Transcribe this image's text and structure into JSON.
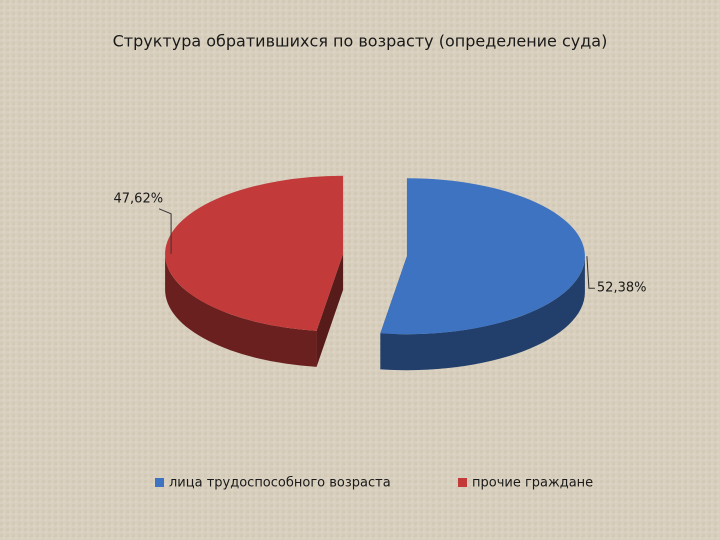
{
  "chart_data": {
    "type": "pie",
    "title": "Структура обратившихся по возрасту (определение суда)",
    "categories": [
      "лица трудоспособного возраста",
      "прочие граждане"
    ],
    "values": [
      52.38,
      47.62
    ],
    "value_labels": [
      "52,38%",
      "47,62%"
    ],
    "colors": [
      "#3e73c2",
      "#c23b3a"
    ],
    "legend": "bottom"
  }
}
